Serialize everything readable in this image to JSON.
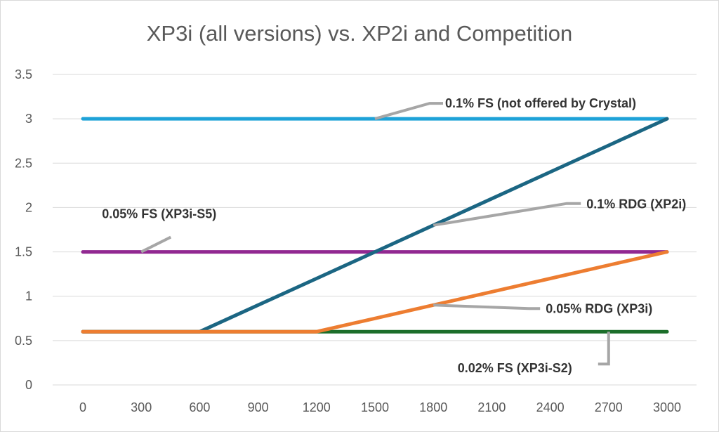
{
  "chart_data": {
    "type": "line",
    "title": "XP3i (all versions) vs. XP2i and Competition",
    "xlabel": "",
    "ylabel": "",
    "x": [
      0,
      300,
      600,
      900,
      1200,
      1500,
      1800,
      2100,
      2400,
      2700,
      3000
    ],
    "x_tick_labels": [
      "0",
      "300",
      "600",
      "900",
      "1200",
      "1500",
      "1800",
      "2100",
      "2400",
      "2700",
      "3000"
    ],
    "y_tick_labels": [
      "0",
      "0.5",
      "1",
      "1.5",
      "2",
      "2.5",
      "3",
      "3.5"
    ],
    "xlim": [
      0,
      3000
    ],
    "ylim": [
      0,
      3.5
    ],
    "grid": "horizontal",
    "legend": "none",
    "series": [
      {
        "color": "#1ea2d8",
        "values": [
          3,
          3,
          3,
          3,
          3,
          3,
          3,
          3,
          3,
          3,
          3
        ]
      },
      {
        "color": "#912891",
        "values": [
          1.5,
          1.5,
          1.5,
          1.5,
          1.5,
          1.5,
          1.5,
          1.5,
          1.5,
          1.5,
          1.5
        ]
      },
      {
        "color": "#1c6e2a",
        "values": [
          0.6,
          0.6,
          0.6,
          0.6,
          0.6,
          0.6,
          0.6,
          0.6,
          0.6,
          0.6,
          0.6
        ]
      },
      {
        "color": "#1b6683",
        "values": [
          0.6,
          0.6,
          0.6,
          0.9,
          1.2,
          1.5,
          1.8,
          2.1,
          2.4,
          2.7,
          3
        ]
      },
      {
        "color": "#ed7d31",
        "values": [
          0.6,
          0.6,
          0.6,
          0.6,
          0.6,
          0.75,
          0.9,
          1.05,
          1.2,
          1.35,
          1.5
        ]
      }
    ],
    "annotations": [
      {
        "text": "0.1% FS (not offered by Crystal)",
        "points_to": {
          "x": 1500,
          "y": 3
        }
      },
      {
        "text": "0.05% FS (XP3i-S5)",
        "points_to": {
          "x": 300,
          "y": 1.5
        }
      },
      {
        "text": "0.1% RDG (XP2i)",
        "points_to": {
          "x": 1800,
          "y": 1.8
        }
      },
      {
        "text": "0.05% RDG (XP3i)",
        "points_to": {
          "x": 1800,
          "y": 0.9
        }
      },
      {
        "text": "0.02% FS (XP3i-S2)",
        "points_to": {
          "x": 2700,
          "y": 0.6
        }
      }
    ],
    "leader_color": "#a6a6a6",
    "grid_color": "#d9d9d9"
  }
}
